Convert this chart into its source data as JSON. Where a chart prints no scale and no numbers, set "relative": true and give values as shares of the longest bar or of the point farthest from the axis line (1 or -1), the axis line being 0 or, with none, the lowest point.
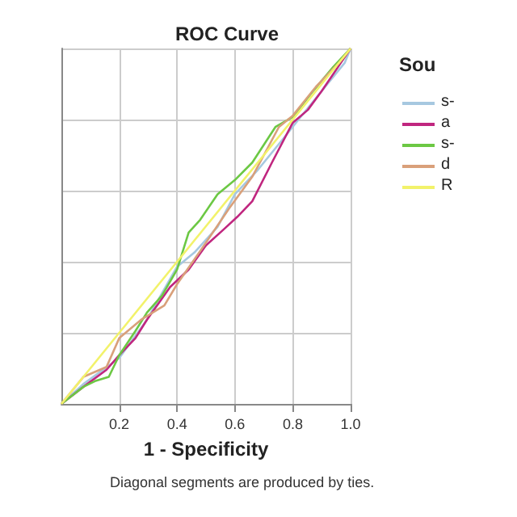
{
  "chart_data": {
    "type": "line",
    "title": "ROC Curve",
    "xlabel": "1 - Specificity",
    "legend_title": "Sou",
    "annotations": [
      "Diagonal segments are produced by ties."
    ],
    "xlim": [
      0,
      1
    ],
    "relative": true,
    "xticks": [
      {
        "value": 0.2,
        "label": "0.2"
      },
      {
        "value": 0.4,
        "label": "0.4"
      },
      {
        "value": 0.6,
        "label": "0.6"
      },
      {
        "value": 0.8,
        "label": "0.8"
      },
      {
        "value": 1,
        "label": "1.0"
      }
    ],
    "tick_labels": "x",
    "grid": true,
    "legend": "right",
    "marker": "none",
    "series": [
      {
        "name": "s-",
        "color": "#a6c8e0",
        "x": [
          0,
          0.076,
          0.2,
          0.296,
          0.4,
          0.46,
          0.54,
          0.6,
          0.68,
          0.78,
          0.82,
          0.9,
          0.98,
          1
        ],
        "values": [
          0,
          0.056,
          0.129,
          0.237,
          0.386,
          0.426,
          0.498,
          0.59,
          0.659,
          0.759,
          0.8,
          0.88,
          0.96,
          1
        ]
      },
      {
        "name": "a",
        "color": "#c0267f",
        "x": [
          0,
          0.076,
          0.156,
          0.2,
          0.256,
          0.296,
          0.376,
          0.44,
          0.5,
          0.56,
          0.608,
          0.66,
          0.728,
          0.8,
          0.852,
          0.9,
          0.96,
          1
        ],
        "values": [
          0,
          0.048,
          0.096,
          0.137,
          0.185,
          0.237,
          0.329,
          0.378,
          0.446,
          0.49,
          0.526,
          0.57,
          0.679,
          0.791,
          0.827,
          0.88,
          0.952,
          1
        ]
      },
      {
        "name": "s-",
        "color": "#6cc844",
        "x": [
          0,
          0.076,
          0.116,
          0.164,
          0.2,
          0.256,
          0.296,
          0.348,
          0.4,
          0.44,
          0.48,
          0.54,
          0.6,
          0.66,
          0.74,
          0.8,
          0.87,
          0.94,
          1
        ],
        "values": [
          0,
          0.048,
          0.064,
          0.076,
          0.137,
          0.205,
          0.257,
          0.305,
          0.378,
          0.482,
          0.518,
          0.59,
          0.63,
          0.679,
          0.779,
          0.807,
          0.88,
          0.948,
          1
        ]
      },
      {
        "name": "d",
        "color": "#d9a07a",
        "x": [
          0,
          0.076,
          0.156,
          0.2,
          0.276,
          0.356,
          0.4,
          0.48,
          0.58,
          0.66,
          0.752,
          0.8,
          0.88,
          0.96,
          1
        ],
        "values": [
          0,
          0.076,
          0.104,
          0.185,
          0.237,
          0.277,
          0.337,
          0.43,
          0.55,
          0.639,
          0.779,
          0.811,
          0.892,
          0.96,
          1
        ]
      },
      {
        "name": "R",
        "color": "#f2f26a",
        "x": [
          0,
          1
        ],
        "values": [
          0,
          1
        ]
      }
    ]
  }
}
